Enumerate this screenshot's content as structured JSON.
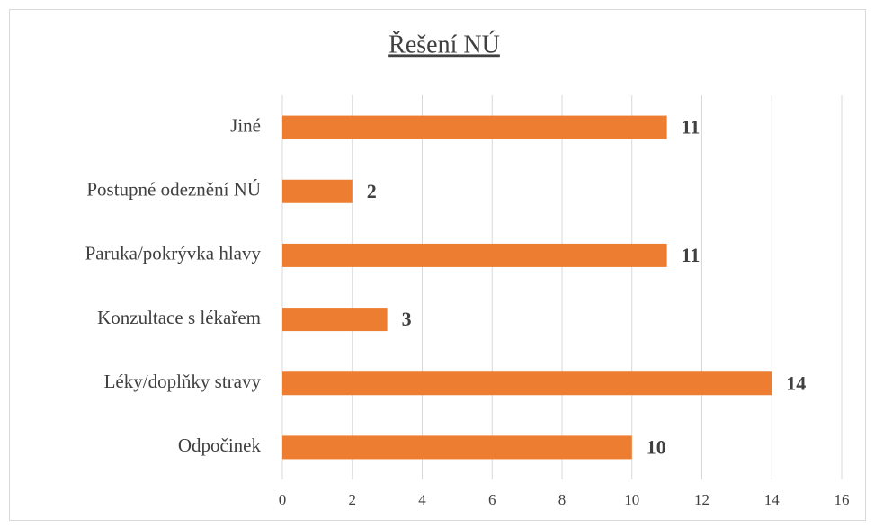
{
  "chart_data": {
    "type": "bar",
    "orientation": "horizontal",
    "title": "Řešení NÚ",
    "categories": [
      "Jiné",
      "Postupné odeznění NÚ",
      "Paruka/pokrývka hlavy",
      "Konzultace s lékařem",
      "Léky/doplňky stravy",
      "Odpočinek"
    ],
    "values": [
      11,
      2,
      11,
      3,
      14,
      10
    ],
    "color": "#ed7d31",
    "xlim": [
      0,
      16
    ],
    "xticks": [
      0,
      2,
      4,
      6,
      8,
      10,
      12,
      14,
      16
    ],
    "grid": true
  }
}
